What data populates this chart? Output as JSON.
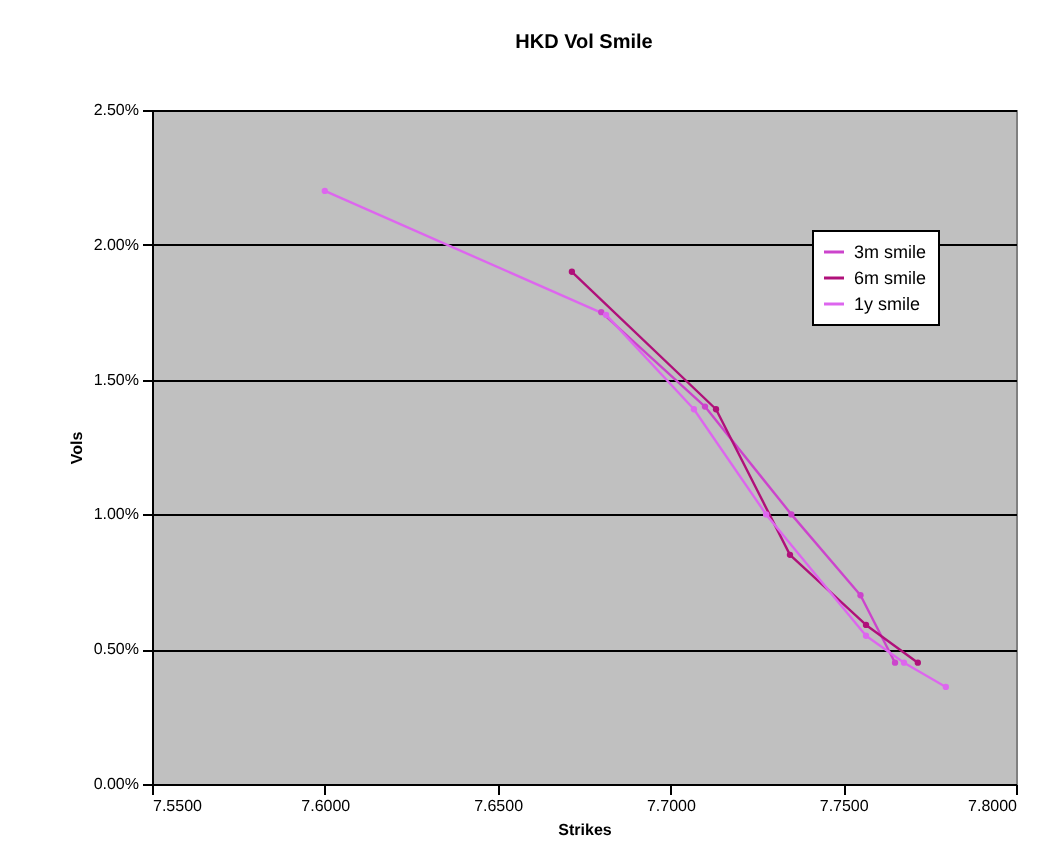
{
  "chart_data": {
    "type": "line",
    "title": "HKD Vol Smile",
    "xlabel": "Strikes",
    "ylabel": "Vols",
    "xlim": [
      7.55,
      7.8
    ],
    "xticks": [
      {
        "value": 7.55,
        "label": "7.5500"
      },
      {
        "value": 7.6,
        "label": "7.6000"
      },
      {
        "value": 7.65,
        "label": "7.6500"
      },
      {
        "value": 7.7,
        "label": "7.7000"
      },
      {
        "value": 7.75,
        "label": "7.7500"
      },
      {
        "value": 7.8,
        "label": "7.8000"
      }
    ],
    "ylim": [
      0,
      2.5
    ],
    "yticks": [
      {
        "value": 0,
        "label": "0.00%"
      },
      {
        "value": 0.5,
        "label": "0.50%"
      },
      {
        "value": 1,
        "label": "1.00%"
      },
      {
        "value": 1.5,
        "label": "1.50%"
      },
      {
        "value": 2,
        "label": "2.00%"
      },
      {
        "value": 2.5,
        "label": "2.50%"
      }
    ],
    "grid": "y",
    "legend": "top right",
    "marker": "circle",
    "series": [
      {
        "name": "3m smile",
        "color": "#cc44cc",
        "x": [
          7.68,
          7.71,
          7.735,
          7.755,
          7.765
        ],
        "values": [
          1.75,
          1.4,
          1.0,
          0.7,
          0.45
        ]
      },
      {
        "name": "6m smile",
        "color": "#b0107a",
        "x": [
          7.6715,
          7.7132,
          7.7346,
          7.7566,
          7.7716
        ],
        "values": [
          1.9,
          1.39,
          0.85,
          0.59,
          0.45
        ]
      },
      {
        "name": "1y smile",
        "color": "#dd66ee",
        "x": [
          7.6,
          7.6814,
          7.7068,
          7.7277,
          7.7566,
          7.7676,
          7.7797
        ],
        "values": [
          2.2,
          1.74,
          1.39,
          1.0,
          0.55,
          0.45,
          0.36
        ]
      }
    ]
  }
}
